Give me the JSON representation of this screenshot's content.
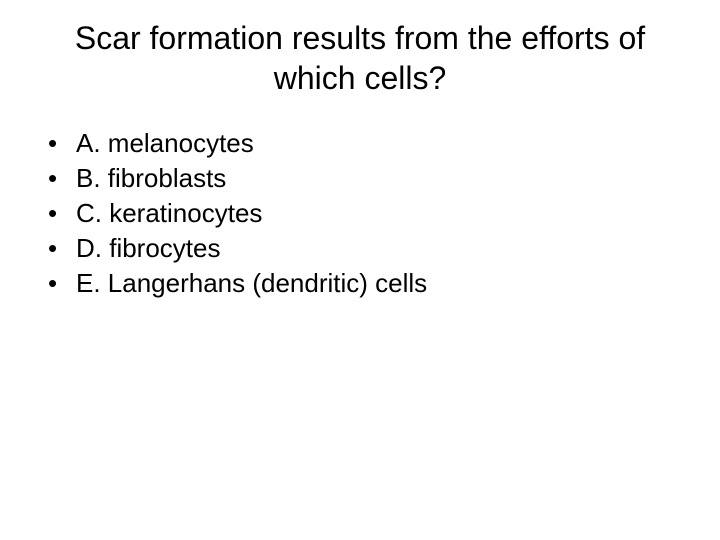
{
  "slide": {
    "title": "Scar formation results from the efforts of which cells?",
    "title_fontsize": 32,
    "title_align": "center",
    "background_color": "#ffffff",
    "text_color": "#000000",
    "font_family": "Arial",
    "bullet_char": "•",
    "options": [
      {
        "label": "A. melanocytes"
      },
      {
        "label": "B. fibroblasts"
      },
      {
        "label": "C. keratinocytes"
      },
      {
        "label": "D. fibrocytes"
      },
      {
        "label": "E. Langerhans (dendritic) cells"
      }
    ],
    "option_fontsize": 26
  }
}
